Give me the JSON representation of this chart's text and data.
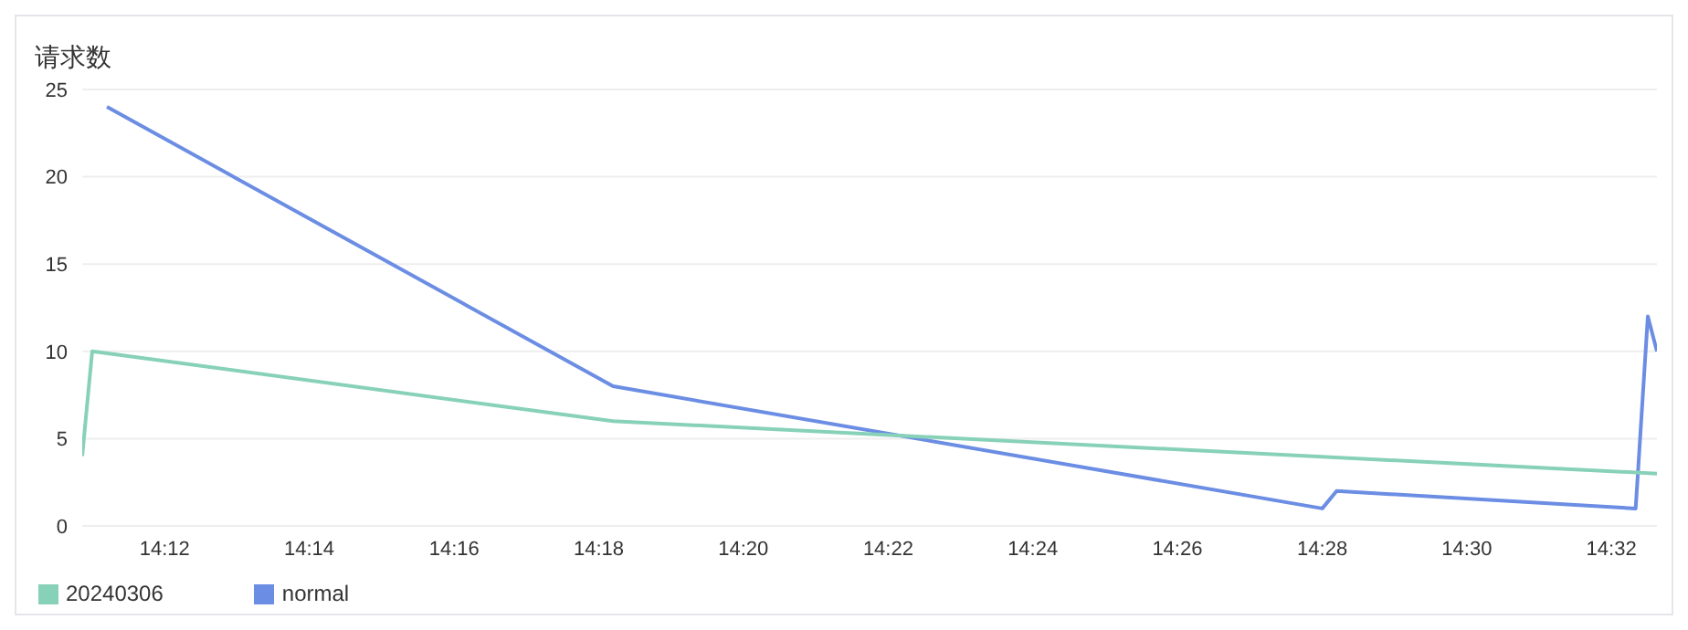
{
  "chart_data": {
    "type": "line",
    "ylabel": "请求数",
    "xlim": [
      14.181,
      14.5438
    ],
    "ylim": [
      0,
      25
    ],
    "yticks": [
      0,
      5,
      10,
      15,
      20,
      25
    ],
    "xticks": [
      {
        "value": 14.2,
        "label": "14:12"
      },
      {
        "value": 14.2333,
        "label": "14:14"
      },
      {
        "value": 14.2667,
        "label": "14:16"
      },
      {
        "value": 14.3,
        "label": "14:18"
      },
      {
        "value": 14.3333,
        "label": "14:20"
      },
      {
        "value": 14.3667,
        "label": "14:22"
      },
      {
        "value": 14.4,
        "label": "14:24"
      },
      {
        "value": 14.4333,
        "label": "14:26"
      },
      {
        "value": 14.4667,
        "label": "14:28"
      },
      {
        "value": 14.5,
        "label": "14:30"
      },
      {
        "value": 14.5333,
        "label": "14:32"
      }
    ],
    "grid": "y",
    "legend": "bottom left",
    "marker": "none",
    "line_style": "solid",
    "series": [
      {
        "name": "normal",
        "color": "#6b8de3",
        "x": [
          14.1867,
          14.3033,
          14.4667,
          14.47,
          14.5389,
          14.5417,
          14.5438
        ],
        "values": [
          24,
          8,
          1,
          2,
          1,
          12,
          10
        ]
      },
      {
        "name": "20240306",
        "color": "#88d1b9",
        "x": [
          14.181,
          14.1833,
          14.3033,
          14.5438
        ],
        "values": [
          4,
          10,
          6,
          3
        ]
      }
    ]
  }
}
